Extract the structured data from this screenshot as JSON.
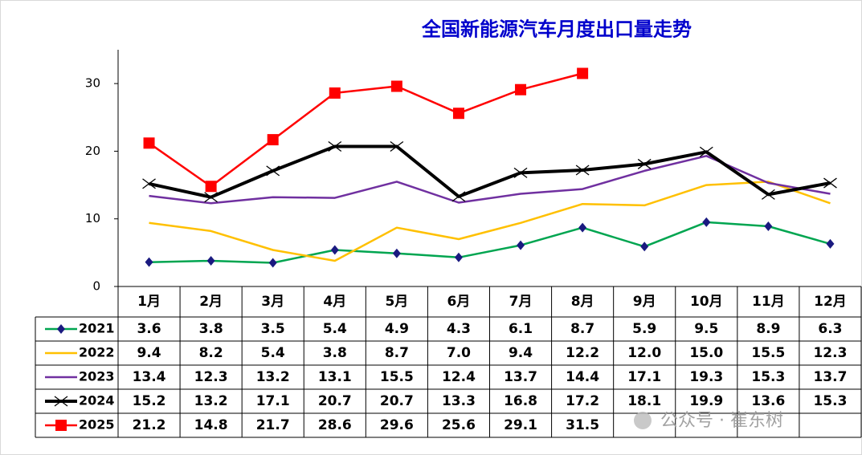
{
  "chart_data": {
    "type": "line",
    "title": "全国新能源汽车月度出口量走势",
    "categories": [
      "1月",
      "2月",
      "3月",
      "4月",
      "5月",
      "6月",
      "7月",
      "8月",
      "9月",
      "10月",
      "11月",
      "12月"
    ],
    "ylim": [
      0,
      35
    ],
    "yticks": [
      0,
      10,
      20,
      30
    ],
    "grid": false,
    "series": [
      {
        "name": "2021",
        "color": "#00a550",
        "marker": "diamond",
        "marker_color": "#1a1a80",
        "values": [
          3.6,
          3.8,
          3.5,
          5.4,
          4.9,
          4.3,
          6.1,
          8.7,
          5.9,
          9.5,
          8.9,
          6.3
        ],
        "value_labels": [
          "3.6",
          "3.8",
          "3.5",
          "5.4",
          "4.9",
          "4.3",
          "6.1",
          "8.7",
          "5.9",
          "9.5",
          "8.9",
          "6.3"
        ]
      },
      {
        "name": "2022",
        "color": "#ffc000",
        "marker": "none",
        "values": [
          9.4,
          8.2,
          5.4,
          3.8,
          8.7,
          7.0,
          9.4,
          12.2,
          12.0,
          15.0,
          15.5,
          12.3
        ],
        "value_labels": [
          "9.4",
          "8.2",
          "5.4",
          "3.8",
          "8.7",
          "7.0",
          "9.4",
          "12.2",
          "12.0",
          "15.0",
          "15.5",
          "12.3"
        ]
      },
      {
        "name": "2023",
        "color": "#7030a0",
        "marker": "none",
        "values": [
          13.4,
          12.3,
          13.2,
          13.1,
          15.5,
          12.4,
          13.7,
          14.4,
          17.1,
          19.3,
          15.3,
          13.7
        ],
        "value_labels": [
          "13.4",
          "12.3",
          "13.2",
          "13.1",
          "15.5",
          "12.4",
          "13.7",
          "14.4",
          "17.1",
          "19.3",
          "15.3",
          "13.7"
        ]
      },
      {
        "name": "2024",
        "color": "#000000",
        "marker": "x",
        "marker_color": "#000000",
        "values": [
          15.2,
          13.2,
          17.1,
          20.7,
          20.7,
          13.3,
          16.8,
          17.2,
          18.1,
          19.9,
          13.6,
          15.3
        ],
        "value_labels": [
          "15.2",
          "13.2",
          "17.1",
          "20.7",
          "20.7",
          "13.3",
          "16.8",
          "17.2",
          "18.1",
          "19.9",
          "13.6",
          "15.3"
        ]
      },
      {
        "name": "2025",
        "color": "#ff0000",
        "marker": "square",
        "marker_color": "#ff0000",
        "values": [
          21.2,
          14.8,
          21.7,
          28.6,
          29.6,
          25.6,
          29.1,
          31.5,
          null,
          null,
          null,
          null
        ],
        "value_labels": [
          "21.2",
          "14.8",
          "21.7",
          "28.6",
          "29.6",
          "25.6",
          "29.1",
          "31.5",
          null,
          null,
          null,
          null
        ]
      }
    ],
    "watermark": "公众号 · 崔东树"
  }
}
